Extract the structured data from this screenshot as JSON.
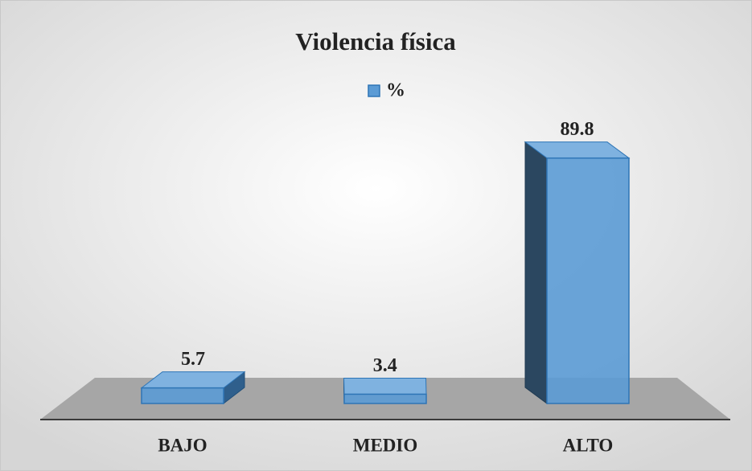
{
  "chart_data": {
    "type": "bar3d",
    "title": "Violencia física",
    "categories": [
      "BAJO",
      "MEDIO",
      "ALTO"
    ],
    "series": [
      {
        "name": "%",
        "color": "#5b9bd5",
        "values": [
          5.7,
          3.4,
          89.8
        ]
      }
    ],
    "ylim": [
      0,
      100
    ],
    "legend": "top"
  }
}
